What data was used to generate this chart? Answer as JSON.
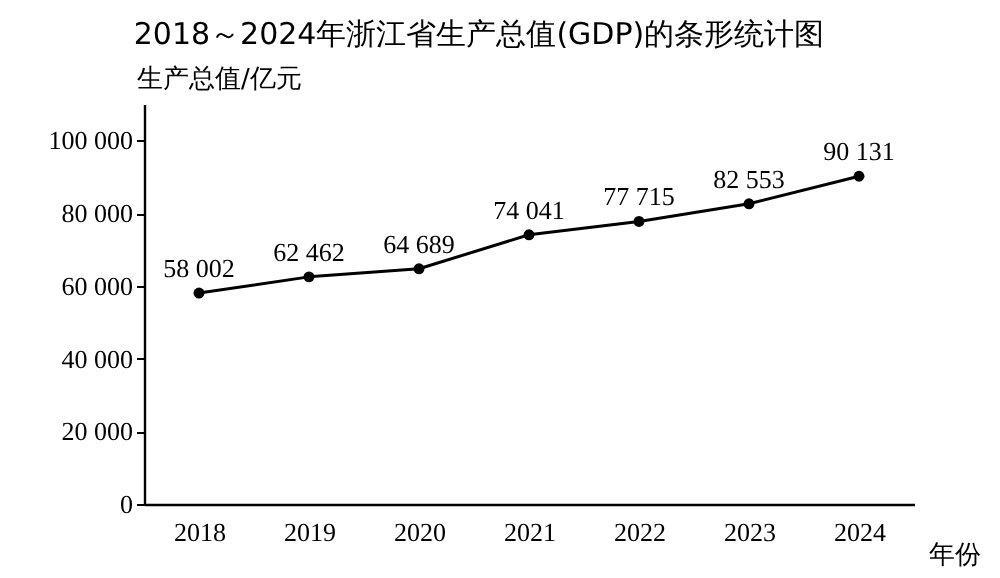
{
  "chart_data": {
    "type": "line",
    "title": "2018～2024年浙江省生产总值(GDP)的条形统计图",
    "ylabel": "生产总值/亿元",
    "xlabel": "年份",
    "categories": [
      "2018",
      "2019",
      "2020",
      "2021",
      "2022",
      "2023",
      "2024"
    ],
    "series": [
      {
        "color": "#000000",
        "values": [
          58002,
          62462,
          64689,
          74041,
          77715,
          82553,
          90131
        ],
        "value_labels": [
          "58 002",
          "62 462",
          "64 689",
          "74 041",
          "77 715",
          "82 553",
          "90 131"
        ]
      }
    ],
    "ylim": [
      0,
      110000
    ],
    "yticks": [
      {
        "value": 0,
        "label": "0"
      },
      {
        "value": 20000,
        "label": "20 000"
      },
      {
        "value": 40000,
        "label": "40 000"
      },
      {
        "value": 60000,
        "label": "60 000"
      },
      {
        "value": 80000,
        "label": "80 000"
      },
      {
        "value": 100000,
        "label": "100 000"
      }
    ],
    "marker": "circle"
  }
}
